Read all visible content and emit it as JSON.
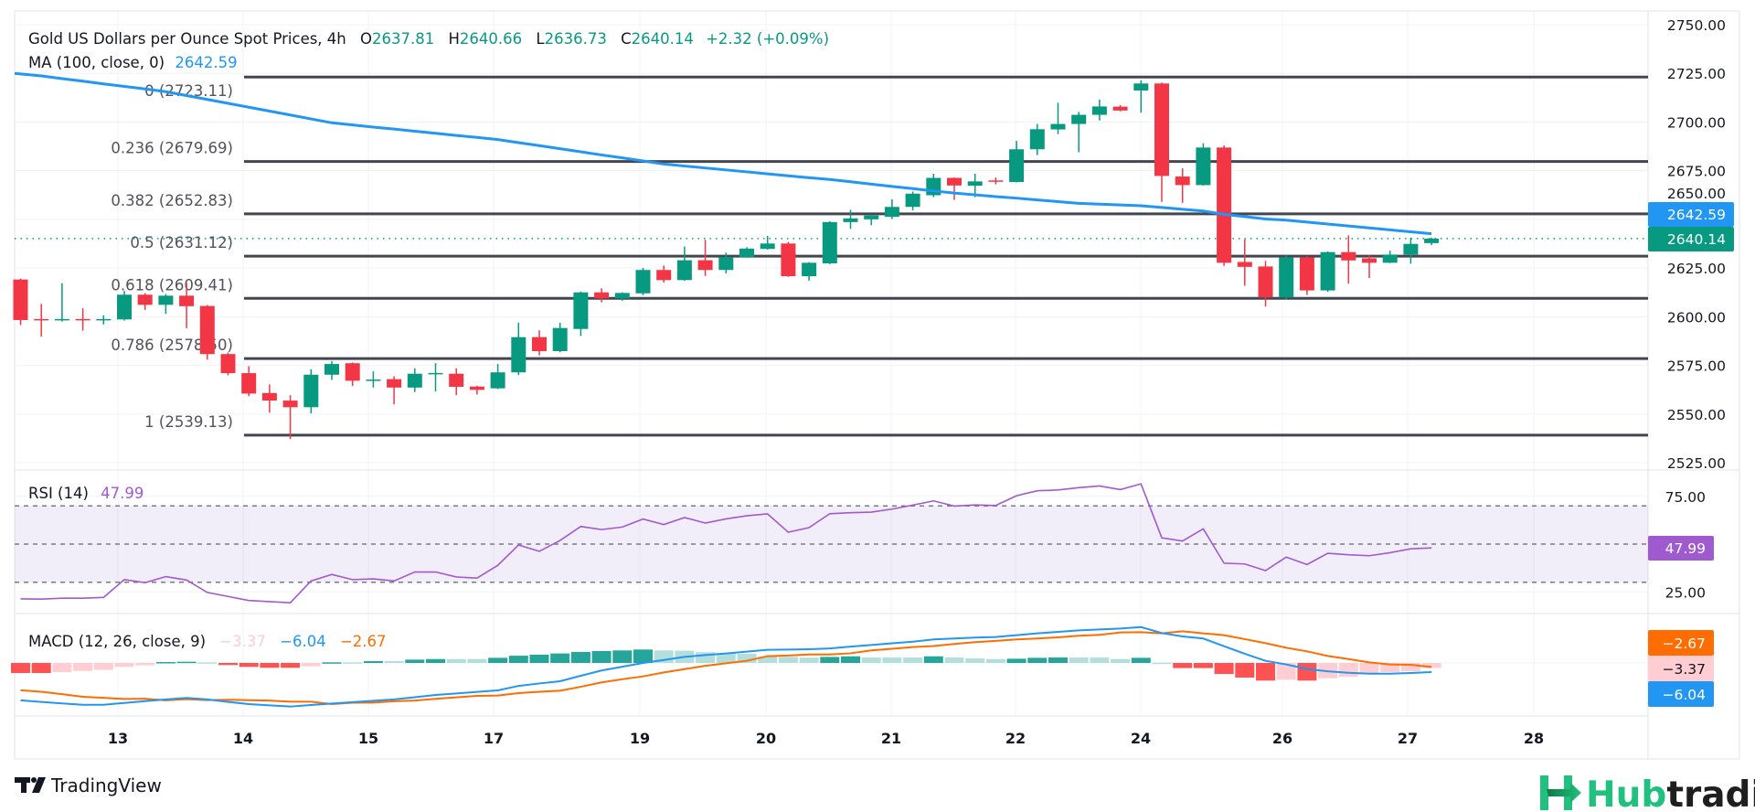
{
  "header": {
    "title": "Gold US Dollars per Ounce Spot Prices, 4h",
    "o_label": "O",
    "open": "2637.81",
    "h_label": "H",
    "high": "2640.66",
    "l_label": "L",
    "low": "2636.73",
    "c_label": "C",
    "close": "2640.14",
    "change": "+2.32 (+0.09%)"
  },
  "ma_legend": {
    "label": "MA (100, close, 0)",
    "value": "2642.59"
  },
  "rsi_legend": {
    "label": "RSI (14)",
    "value": "47.99"
  },
  "macd_legend": {
    "label": "MACD (12, 26, close, 9)",
    "hist": "−3.37",
    "macd": "−6.04",
    "signal": "−2.67"
  },
  "price_axis": {
    "ticks": [
      "2750.00",
      "2725.00",
      "2700.00",
      "2675.00",
      "2650.00",
      "2625.00",
      "2600.00",
      "2575.00",
      "2550.00",
      "2525.00"
    ],
    "ma_label": "2642.59",
    "last_label": "2640.14"
  },
  "rsi_axis": {
    "ticks": [
      "75.00",
      "25.00"
    ],
    "last_label": "47.99"
  },
  "macd_axis": {
    "signal_label": "−2.67",
    "hist_label": "−3.37",
    "macd_label": "−6.04"
  },
  "date_axis": [
    "13",
    "14",
    "15",
    "17",
    "19",
    "20",
    "21",
    "22",
    "24",
    "26",
    "27",
    "28"
  ],
  "branding": {
    "tradingview": "TradingView",
    "hub": "Hub",
    "trading": "trading"
  },
  "colors": {
    "up": "#089981",
    "down": "#f23645",
    "ma": "#2196f3",
    "fib": "#434651",
    "rsi": "#a05ad0",
    "rsi_band": "#7e57c2",
    "macd": "#2196f3",
    "signal": "#ff6d00",
    "hist_up_strong": "#26a69a",
    "hist_up_weak": "#b2dfdb",
    "hist_down_strong": "#ff5252",
    "hist_down_weak": "#ffcdd2",
    "hub_green": "#22c07f"
  },
  "chart_data": {
    "type": "candlestick",
    "title": "Gold US Dollars per Ounce Spot Prices, 4h",
    "timeframe": "4h",
    "ylim": [
      2525,
      2750
    ],
    "grid": true,
    "x_tick_labels": [
      "13",
      "14",
      "15",
      "17",
      "19",
      "20",
      "21",
      "22",
      "24",
      "26",
      "27",
      "28"
    ],
    "ohlc": [
      [
        2619.1,
        2619.5,
        2595.7,
        2598.3
      ],
      [
        2598.8,
        2606.6,
        2589.7,
        2598.4
      ],
      [
        2598.4,
        2617.2,
        2597.5,
        2598.8
      ],
      [
        2598.8,
        2604.3,
        2592.8,
        2598.4
      ],
      [
        2598.2,
        2600.7,
        2596.0,
        2598.8
      ],
      [
        2598.6,
        2613.2,
        2598.0,
        2611.3
      ],
      [
        2611.3,
        2612.1,
        2603.5,
        2606.1
      ],
      [
        2606.1,
        2611.6,
        2601.4,
        2610.8
      ],
      [
        2610.8,
        2617.5,
        2594.1,
        2605.4
      ],
      [
        2605.5,
        2606.0,
        2578.0,
        2580.8
      ],
      [
        2580.8,
        2581.6,
        2569.9,
        2571.0
      ],
      [
        2571.0,
        2574.6,
        2559.2,
        2560.5
      ],
      [
        2560.8,
        2565.2,
        2550.7,
        2556.9
      ],
      [
        2556.9,
        2559.7,
        2537.1,
        2553.5
      ],
      [
        2553.5,
        2573.0,
        2550.3,
        2570.2
      ],
      [
        2570.2,
        2577.2,
        2567.5,
        2575.7
      ],
      [
        2576.1,
        2576.5,
        2564.4,
        2567.1
      ],
      [
        2567.4,
        2571.9,
        2563.6,
        2567.7
      ],
      [
        2567.9,
        2569.4,
        2555.0,
        2563.6
      ],
      [
        2563.6,
        2573.5,
        2561.3,
        2570.7
      ],
      [
        2570.8,
        2576.1,
        2561.6,
        2571.1
      ],
      [
        2570.7,
        2573.5,
        2559.7,
        2564.0
      ],
      [
        2564.1,
        2564.5,
        2560.0,
        2562.4
      ],
      [
        2563.2,
        2575.7,
        2562.8,
        2571.4
      ],
      [
        2571.4,
        2596.9,
        2570.0,
        2589.5
      ],
      [
        2589.5,
        2593.0,
        2580.1,
        2582.3
      ],
      [
        2582.3,
        2596.9,
        2581.7,
        2594.2
      ],
      [
        2593.7,
        2612.9,
        2590.1,
        2612.5
      ],
      [
        2612.5,
        2614.6,
        2607.4,
        2609.4
      ],
      [
        2609.4,
        2612.5,
        2608.2,
        2612.2
      ],
      [
        2612.0,
        2625.1,
        2611.0,
        2624.0
      ],
      [
        2624.0,
        2626.3,
        2617.6,
        2618.8
      ],
      [
        2618.8,
        2636.0,
        2618.5,
        2629.0
      ],
      [
        2629.0,
        2639.5,
        2620.9,
        2624.0
      ],
      [
        2624.0,
        2632.9,
        2622.3,
        2630.6
      ],
      [
        2630.6,
        2635.7,
        2630.3,
        2635.0
      ],
      [
        2634.8,
        2641.5,
        2634.5,
        2637.6
      ],
      [
        2637.6,
        2638.4,
        2620.5,
        2620.8
      ],
      [
        2620.8,
        2628.0,
        2618.5,
        2627.7
      ],
      [
        2627.4,
        2649.0,
        2627.0,
        2648.6
      ],
      [
        2648.6,
        2654.9,
        2645.1,
        2650.5
      ],
      [
        2650.0,
        2652.5,
        2647.0,
        2652.0
      ],
      [
        2651.3,
        2660.3,
        2650.2,
        2656.4
      ],
      [
        2656.4,
        2664.3,
        2654.6,
        2663.2
      ],
      [
        2662.4,
        2673.4,
        2661.4,
        2671.3
      ],
      [
        2671.3,
        2671.5,
        2660.0,
        2667.4
      ],
      [
        2667.3,
        2673.4,
        2661.4,
        2669.5
      ],
      [
        2670.0,
        2671.5,
        2668.0,
        2669.7
      ],
      [
        2669.2,
        2690.3,
        2669.0,
        2686.0
      ],
      [
        2686.0,
        2699.0,
        2683.0,
        2696.3
      ],
      [
        2696.2,
        2709.9,
        2693.8,
        2699.0
      ],
      [
        2699.0,
        2705.2,
        2684.5,
        2703.7
      ],
      [
        2703.7,
        2711.5,
        2700.8,
        2708.0
      ],
      [
        2707.9,
        2708.7,
        2705.5,
        2705.9
      ],
      [
        2716.2,
        2721.4,
        2704.8,
        2719.8
      ],
      [
        2719.8,
        2720.3,
        2659.0,
        2672.3
      ],
      [
        2672.0,
        2676.2,
        2658.5,
        2667.6
      ],
      [
        2667.6,
        2689.1,
        2667.3,
        2686.9
      ],
      [
        2686.9,
        2688.0,
        2626.1,
        2627.7
      ],
      [
        2628.1,
        2639.7,
        2615.9,
        2625.6
      ],
      [
        2625.8,
        2628.7,
        2605.2,
        2609.9
      ],
      [
        2609.9,
        2631.9,
        2608.9,
        2630.5
      ],
      [
        2630.5,
        2631.3,
        2611.2,
        2613.5
      ],
      [
        2613.5,
        2633.5,
        2612.8,
        2633.2
      ],
      [
        2633.2,
        2641.8,
        2617.0,
        2628.9
      ],
      [
        2630.0,
        2631.6,
        2619.8,
        2627.7
      ],
      [
        2627.7,
        2633.9,
        2627.5,
        2631.9
      ],
      [
        2631.9,
        2640.5,
        2627.2,
        2637.4
      ],
      [
        2637.81,
        2640.66,
        2636.73,
        2640.14
      ]
    ],
    "ma_100": [
      2725,
      2723.7,
      2722.3,
      2721,
      2719.6,
      2718.3,
      2717,
      2715.6,
      2713.6,
      2711.6,
      2709.6,
      2707.6,
      2705.6,
      2703.6,
      2701.6,
      2699.6,
      2698.5,
      2697.4,
      2696.4,
      2695.3,
      2694.2,
      2693.1,
      2692.1,
      2691,
      2689.4,
      2687.9,
      2686.3,
      2684.7,
      2683.1,
      2681.6,
      2680,
      2678.4,
      2677.4,
      2676.4,
      2675.4,
      2674.4,
      2673.4,
      2672.4,
      2671.4,
      2670.5,
      2669.3,
      2668.1,
      2666.9,
      2665.8,
      2664.6,
      2663.5,
      2662.6,
      2661.7,
      2660.9,
      2660,
      2659.1,
      2658.2,
      2657.8,
      2657.4,
      2657,
      2656.1,
      2655.2,
      2654.3,
      2652.6,
      2651.4,
      2650.2,
      2649.6,
      2648.6,
      2647.6,
      2646.6,
      2645.6,
      2644.6,
      2643.6,
      2642.59
    ],
    "fib_levels": [
      {
        "label": "0 (2723.11)",
        "level": 0,
        "price": 2723.11
      },
      {
        "label": "0.236 (2679.69)",
        "level": 0.236,
        "price": 2679.69
      },
      {
        "label": "0.382 (2652.83)",
        "level": 0.382,
        "price": 2652.83
      },
      {
        "label": "0.5 (2631.12)",
        "level": 0.5,
        "price": 2631.12
      },
      {
        "label": "0.618 (2609.41)",
        "level": 0.618,
        "price": 2609.41
      },
      {
        "label": "0.786 (2578.50)",
        "level": 0.786,
        "price": 2578.5
      },
      {
        "label": "1 (2539.13)",
        "level": 1,
        "price": 2539.13
      }
    ],
    "rsi": {
      "ylim": [
        0,
        100
      ],
      "bands": [
        70,
        50,
        30
      ],
      "values": [
        21.3,
        21.2,
        21.7,
        21.7,
        22.1,
        31.4,
        29.8,
        33,
        31.2,
        24.7,
        22.6,
        20.5,
        19.9,
        19.3,
        30.7,
        34.1,
        31.4,
        31.8,
        30.7,
        35.4,
        35.4,
        32.8,
        32.2,
        38.9,
        49.5,
        46.2,
        51.9,
        59.2,
        57.6,
        58.9,
        63.1,
        60.2,
        63.9,
        61,
        63.2,
        64.8,
        65.8,
        56.2,
        58.6,
        65.9,
        66.4,
        66.7,
        68.3,
        70.4,
        72.6,
        69.9,
        70.5,
        70.2,
        75.3,
        77.9,
        78.3,
        79.5,
        80.4,
        78.5,
        81.5,
        53.3,
        51.6,
        58,
        40,
        39.6,
        36.1,
        43.2,
        39.3,
        45.2,
        44.4,
        43.9,
        45.5,
        47.5,
        47.99
      ]
    },
    "macd": {
      "macd": [
        -24.8,
        -25.8,
        -26.8,
        -27.7,
        -27.7,
        -26.5,
        -25.3,
        -24.2,
        -23.2,
        -24.2,
        -25.8,
        -27.3,
        -28.1,
        -28.9,
        -27.9,
        -26.9,
        -26,
        -25.1,
        -24.2,
        -22.7,
        -21.2,
        -20.2,
        -19.2,
        -18.2,
        -15.2,
        -13.6,
        -12.1,
        -8.5,
        -5,
        -2.5,
        0,
        2,
        4,
        5.2,
        6.3,
        7.5,
        8.7,
        8.9,
        9.1,
        9.6,
        10.8,
        11.9,
        13,
        14.1,
        15.6,
        16.2,
        16.8,
        17.2,
        18.4,
        19.6,
        20.6,
        21.6,
        22.2,
        22.8,
        23.8,
        19.8,
        17.6,
        16.2,
        11.1,
        6.1,
        1.4,
        -1,
        -4,
        -5.5,
        -6.5,
        -7.1,
        -7.1,
        -6.7,
        -6.04
      ],
      "histogram": [
        -6.7,
        -6.7,
        -6.1,
        -5.3,
        -4.6,
        -2.6,
        -1.6,
        0.6,
        0.8,
        0.4,
        -1.4,
        -2.6,
        -3.2,
        -3.2,
        -2.2,
        0.4,
        0.4,
        1.2,
        1.2,
        2.2,
        2.6,
        2.6,
        2.6,
        3.4,
        4.8,
        5.5,
        6.3,
        7.3,
        7.9,
        8.3,
        8.9,
        8.3,
        8.1,
        7.1,
        6.5,
        6.1,
        4.2,
        4.0,
        3.5,
        4.0,
        4.4,
        3.6,
        3.6,
        3.6,
        4.4,
        3.6,
        3.0,
        2.6,
        2.8,
        3.4,
        3.6,
        3.6,
        3.6,
        2.6,
        3.4,
        0.2,
        -3.4,
        -3.4,
        -7.3,
        -9.7,
        -11.7,
        -11.1,
        -11.7,
        -10.1,
        -9.1,
        -7.5,
        -6.1,
        -5.5,
        -3.37
      ]
    }
  }
}
